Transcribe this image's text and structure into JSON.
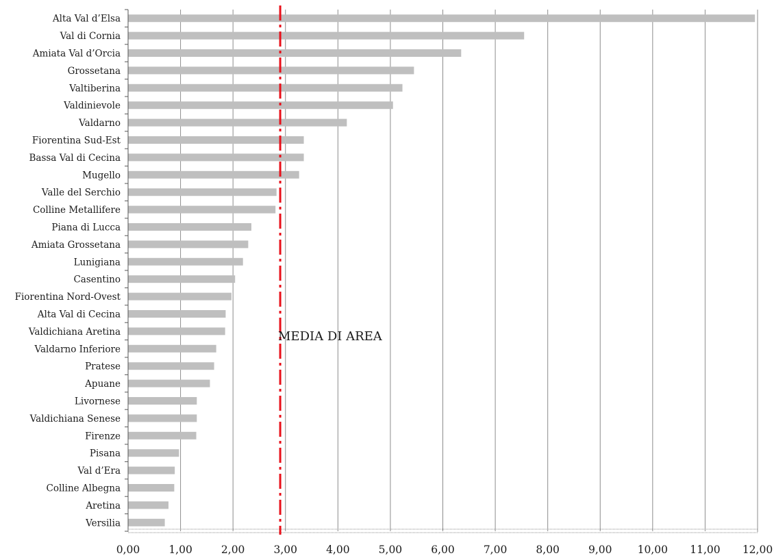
{
  "chart_data": {
    "type": "bar",
    "orientation": "horizontal",
    "title": "",
    "xlabel": "",
    "ylabel": "",
    "xlim": [
      0,
      12
    ],
    "x_ticks": [
      "0,00",
      "1,00",
      "2,00",
      "3,00",
      "4,00",
      "5,00",
      "6,00",
      "7,00",
      "8,00",
      "9,00",
      "10,00",
      "11,00",
      "12,00"
    ],
    "grid": "vertical",
    "bar_color": "#bfbfbf",
    "categories": [
      "Alta Val d’Elsa",
      "Val di Cornia",
      "Amiata Val d’Orcia",
      "Grossetana",
      "Valtiberina",
      "Valdinievole",
      "Valdarno",
      "Fiorentina Sud-Est",
      "Bassa Val di Cecina",
      "Mugello",
      "Valle del Serchio",
      "Colline Metallifere",
      "Piana di Lucca",
      "Amiata Grossetana",
      "Lunigiana",
      "Casentino",
      "Fiorentina Nord-Ovest",
      "Alta Val di Cecina",
      "Valdichiana Aretina",
      "Valdarno Inferiore",
      "Pratese",
      "Apuane",
      "Livornese",
      "Valdichiana Senese",
      "Firenze",
      "Pisana",
      "Val d’Era",
      "Colline Albegna",
      "Aretina",
      "Versilia"
    ],
    "values": [
      11.95,
      7.55,
      6.35,
      5.45,
      5.23,
      5.05,
      4.17,
      3.35,
      3.35,
      3.26,
      2.83,
      2.81,
      2.35,
      2.29,
      2.19,
      2.04,
      1.97,
      1.86,
      1.85,
      1.68,
      1.64,
      1.56,
      1.31,
      1.31,
      1.3,
      0.97,
      0.89,
      0.88,
      0.77,
      0.7
    ],
    "reference_line": {
      "label": "MEDIA DI AREA",
      "value": 2.9,
      "color": "#e8101a",
      "style": "dash-dot"
    }
  }
}
